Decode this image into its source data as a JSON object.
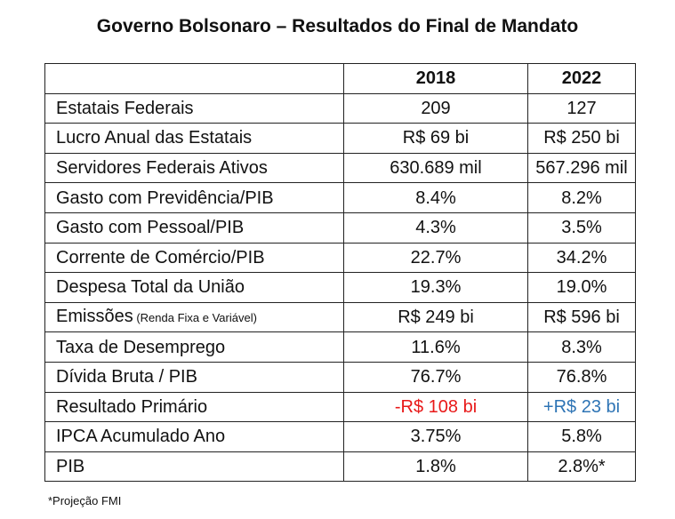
{
  "title": "Governo Bolsonaro – Resultados do Final de Mandato",
  "headers": [
    "",
    "2018",
    "2022"
  ],
  "rows": [
    {
      "label": "Estatais Federais",
      "note": "",
      "v2018": "209",
      "v2022": "127"
    },
    {
      "label": "Lucro Anual das Estatais",
      "note": "",
      "v2018": "R$ 69 bi",
      "v2022": "R$ 250 bi"
    },
    {
      "label": "Servidores Federais Ativos",
      "note": "",
      "v2018": "630.689 mil",
      "v2022": "567.296 mil"
    },
    {
      "label": "Gasto com Previdência/PIB",
      "note": "",
      "v2018": "8.4%",
      "v2022": "8.2%"
    },
    {
      "label": "Gasto com Pessoal/PIB",
      "note": "",
      "v2018": "4.3%",
      "v2022": "3.5%"
    },
    {
      "label": "Corrente de Comércio/PIB",
      "note": "",
      "v2018": "22.7%",
      "v2022": "34.2%"
    },
    {
      "label": "Despesa Total da União",
      "note": "",
      "v2018": "19.3%",
      "v2022": "19.0%"
    },
    {
      "label": "Emissões",
      "note": " (Renda Fixa e Variável)",
      "v2018": "R$ 249 bi",
      "v2022": "R$ 596 bi"
    },
    {
      "label": "Taxa de Desemprego",
      "note": "",
      "v2018": "11.6%",
      "v2022": "8.3%"
    },
    {
      "label": "Dívida Bruta / PIB",
      "note": "",
      "v2018": "76.7%",
      "v2022": "76.8%"
    },
    {
      "label": "Resultado Primário",
      "note": "",
      "v2018": "-R$ 108 bi",
      "v2022": "+R$ 23 bi"
    },
    {
      "label": "IPCA Acumulado Ano",
      "note": "",
      "v2018": "3.75%",
      "v2022": "5.8%"
    },
    {
      "label": "PIB",
      "note": "",
      "v2018": "1.8%",
      "v2022": "2.8%*"
    }
  ],
  "footnote": "*Projeção FMI",
  "colors": {
    "negative": "#e81919",
    "positive": "#2e74b5"
  }
}
